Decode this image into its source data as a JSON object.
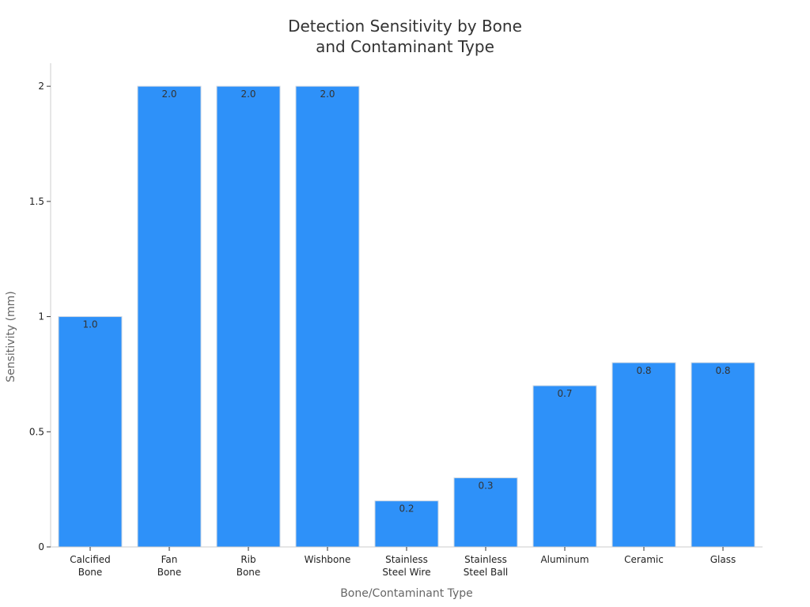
{
  "chart_data": {
    "type": "bar",
    "title": [
      "Detection Sensitivity by Bone",
      "and Contaminant Type"
    ],
    "xlabel": "Bone/Contaminant Type",
    "ylabel": "Sensitivity (mm)",
    "categories": [
      [
        "Calcified",
        "Bone"
      ],
      [
        "Fan",
        "Bone"
      ],
      [
        "Rib",
        "Bone"
      ],
      [
        "Wishbone"
      ],
      [
        "Stainless",
        "Steel Wire"
      ],
      [
        "Stainless",
        "Steel Ball"
      ],
      [
        "Aluminum"
      ],
      [
        "Ceramic"
      ],
      [
        "Glass"
      ]
    ],
    "values": [
      1.0,
      2.0,
      2.0,
      2.0,
      0.2,
      0.3,
      0.7,
      0.8,
      0.8
    ],
    "data_labels": [
      "1.0",
      "2.0",
      "2.0",
      "2.0",
      "0.2",
      "0.3",
      "0.7",
      "0.8",
      "0.8"
    ],
    "ylim": [
      0,
      2.1
    ],
    "yticks": [
      0,
      0.5,
      1,
      1.5,
      2
    ],
    "ytick_labels": [
      "0",
      "0.5",
      "1",
      "1.5",
      "2"
    ],
    "grid": false,
    "legend": "none",
    "bar_color": "#2e91f9",
    "bar_edge_color": "#cfd8e3"
  }
}
